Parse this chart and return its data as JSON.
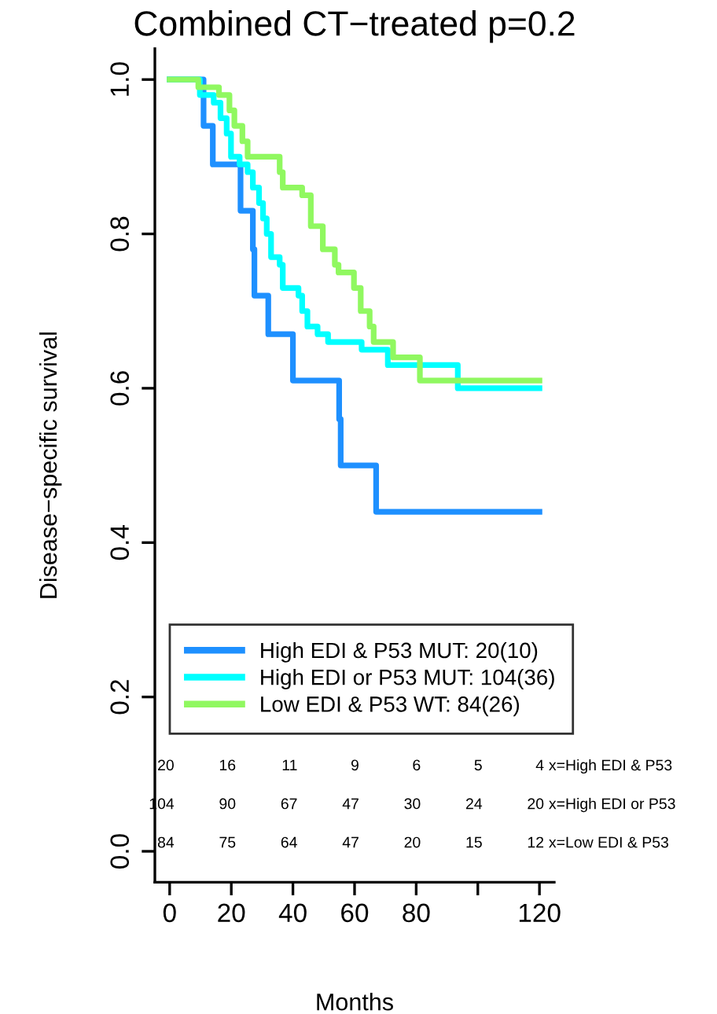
{
  "chart_data": {
    "type": "step",
    "title": "Combined CT−treated p=0.2",
    "xlabel": "Months",
    "ylabel": "Disease−specific survival",
    "xlim": [
      -4.8,
      124.8
    ],
    "ylim": [
      -0.04,
      1.04
    ],
    "xticks": [
      0,
      20,
      40,
      60,
      80,
      {
        "value": 100,
        "label": null
      },
      120
    ],
    "yticks": [
      {
        "value": 0,
        "label": "0.0"
      },
      0.2,
      0.4,
      0.6,
      0.8,
      {
        "value": 1,
        "label": "1.0"
      }
    ],
    "grid": false,
    "legend": "bottom left",
    "line_style": "solid",
    "marker": "none",
    "series": [
      {
        "name": "High EDI & P53 MUT: 20(10)",
        "color": "#1e90ff",
        "x": [
          0,
          11,
          14,
          23,
          27,
          27.5,
          32,
          40,
          55,
          55.5,
          67,
          120
        ],
        "values": [
          1,
          0.94,
          0.89,
          0.83,
          0.78,
          0.72,
          0.67,
          0.61,
          0.56,
          0.5,
          0.44,
          0.44
        ]
      },
      {
        "name": "High EDI or P53 MUT: 104(36)",
        "color": "#00ffff",
        "x": [
          0,
          9.8,
          14.3,
          16.5,
          18.5,
          19.9,
          22.7,
          25.3,
          27,
          29,
          30.3,
          31.5,
          32.9,
          35.7,
          36.7,
          41.8,
          43,
          44.7,
          48,
          51.4,
          62.3,
          70.8,
          93.5,
          120
        ],
        "values": [
          1,
          0.98,
          0.97,
          0.95,
          0.93,
          0.9,
          0.89,
          0.88,
          0.86,
          0.84,
          0.82,
          0.8,
          0.77,
          0.76,
          0.73,
          0.72,
          0.7,
          0.68,
          0.67,
          0.66,
          0.65,
          0.63,
          0.6,
          0.6
        ]
      },
      {
        "name": "Low EDI & P53 WT: 84(26)",
        "color": "#90f860",
        "x": [
          0,
          9.3,
          16,
          19.4,
          21,
          23.6,
          25.3,
          35.7,
          36.7,
          43,
          45.8,
          49.7,
          53.6,
          54.8,
          59.8,
          62,
          64.9,
          66.2,
          72.5,
          81.2,
          120
        ],
        "values": [
          1,
          0.99,
          0.98,
          0.96,
          0.94,
          0.92,
          0.9,
          0.88,
          0.86,
          0.85,
          0.81,
          0.78,
          0.76,
          0.75,
          0.73,
          0.7,
          0.68,
          0.66,
          0.64,
          0.61,
          0.61
        ]
      }
    ],
    "annotations": [
      "20",
      "16",
      "11",
      "9",
      "6",
      "5",
      "4",
      "x=High EDI & P53",
      "104",
      "90",
      "67",
      "47",
      "30",
      "24",
      "20",
      "x=High EDI or P53",
      "84",
      "75",
      "64",
      "47",
      "20",
      "15",
      "12",
      "x=Low EDI & P53"
    ]
  }
}
